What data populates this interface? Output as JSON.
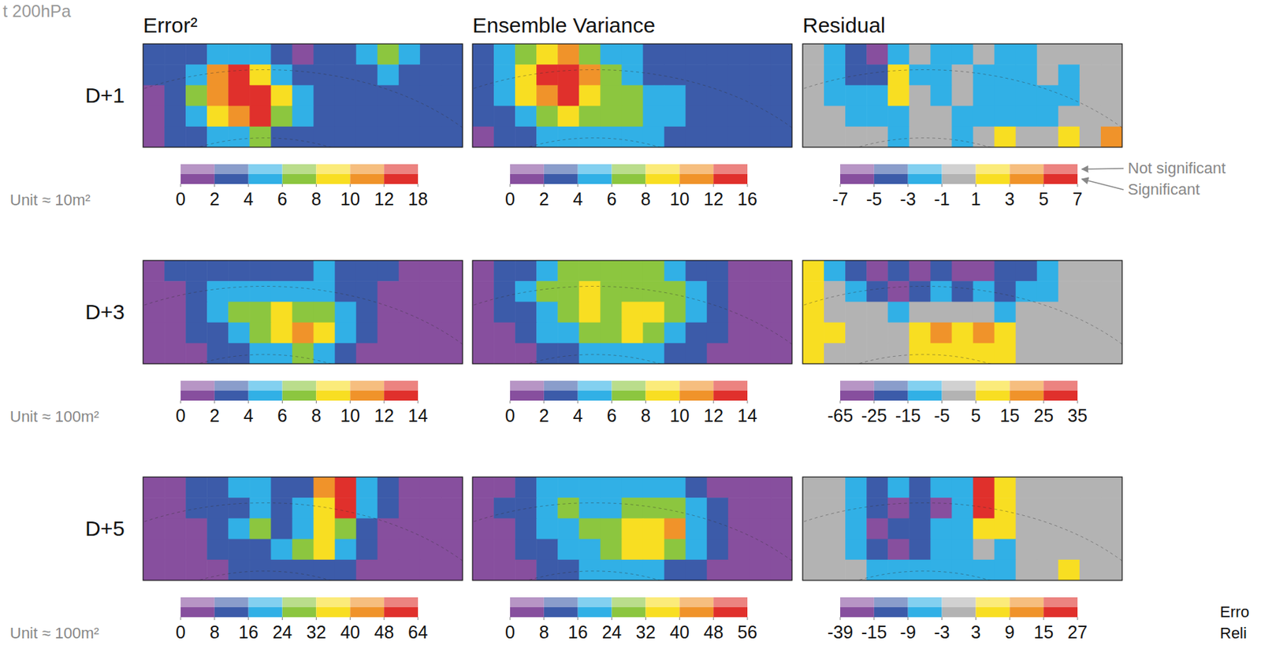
{
  "header": {
    "title": "t 200hPa"
  },
  "column_titles": [
    "Error²",
    "Ensemble Variance",
    "Residual"
  ],
  "row_labels": [
    "D+1",
    "D+3",
    "D+5"
  ],
  "unit_labels": [
    "Unit ≈ 10m²",
    "Unit ≈ 100m²",
    "Unit ≈ 100m²"
  ],
  "significance_labels": [
    "Not significant",
    "Significant"
  ],
  "corner_texts": [
    "Erro",
    "Reli"
  ],
  "chart_data": [
    {
      "type": "heatmap",
      "z": [
        [
          3,
          2,
          3,
          5,
          4,
          5,
          3,
          1,
          3,
          3,
          5,
          7,
          5,
          3,
          3
        ],
        [
          3,
          3,
          5,
          10,
          13,
          9,
          5,
          3,
          3,
          3,
          3,
          5,
          3,
          3,
          3
        ],
        [
          1,
          3,
          6,
          11,
          14,
          12,
          8,
          4,
          3,
          3,
          3,
          3,
          3,
          3,
          3
        ],
        [
          1,
          2,
          5,
          9,
          11,
          13,
          7,
          4,
          3,
          3,
          3,
          3,
          3,
          3,
          3
        ],
        [
          1,
          3,
          3,
          5,
          5,
          6,
          3,
          3,
          3,
          3,
          3,
          3,
          3,
          3,
          3
        ]
      ],
      "colorbar": {
        "ticks": [
          0,
          2,
          4,
          6,
          8,
          10,
          12,
          18
        ],
        "colors": [
          "#874f9e",
          "#3c5ba9",
          "#31b0e6",
          "#8cc63f",
          "#f8de22",
          "#f0932a",
          "#e0302c"
        ]
      }
    },
    {
      "type": "heatmap",
      "z": [
        [
          3,
          4,
          6,
          9,
          10,
          7,
          5,
          4,
          3,
          3,
          3,
          3,
          3,
          3,
          3
        ],
        [
          3,
          5,
          9,
          13,
          14,
          11,
          7,
          5,
          3,
          3,
          3,
          3,
          3,
          3,
          3
        ],
        [
          3,
          5,
          8,
          11,
          12,
          9,
          7,
          7,
          5,
          4,
          3,
          3,
          3,
          3,
          3
        ],
        [
          2,
          3,
          5,
          7,
          8,
          7,
          6,
          7,
          5,
          4,
          3,
          3,
          3,
          3,
          3
        ],
        [
          1,
          3,
          3,
          4,
          5,
          5,
          4,
          4,
          4,
          3,
          3,
          3,
          3,
          3,
          3
        ]
      ],
      "colorbar": {
        "ticks": [
          0,
          2,
          4,
          6,
          8,
          10,
          12,
          16
        ],
        "colors": [
          "#874f9e",
          "#3c5ba9",
          "#31b0e6",
          "#8cc63f",
          "#f8de22",
          "#f0932a",
          "#e0302c"
        ]
      }
    },
    {
      "type": "heatmap",
      "z": [
        [
          0,
          -2,
          -5,
          -6,
          -3,
          -1,
          -2,
          -2,
          0,
          -2,
          -2,
          -1,
          0,
          0,
          0
        ],
        [
          0,
          -3,
          -5,
          -4,
          2,
          -2,
          -2,
          -1,
          -2,
          -2,
          -2,
          -1,
          -2,
          0,
          0
        ],
        [
          0,
          -2,
          -3,
          -3,
          2,
          0,
          -2,
          -1,
          -2,
          -3,
          -2,
          -2,
          -2,
          0,
          0
        ],
        [
          0,
          -1,
          -2,
          -3,
          -2,
          0,
          -1,
          -2,
          -2,
          -3,
          -2,
          -2,
          -1,
          0,
          0
        ],
        [
          0,
          0,
          -1,
          -1,
          -2,
          -1,
          -1,
          -2,
          0,
          2,
          0,
          0,
          2,
          0,
          3
        ]
      ],
      "colorbar": {
        "ticks": [
          -7,
          -5,
          -3,
          -1,
          1,
          3,
          5,
          7
        ],
        "colors": [
          "#874f9e",
          "#3c5ba9",
          "#31b0e6",
          "#b3b3b3",
          "#f8de22",
          "#f0932a",
          "#e0302c"
        ]
      }
    },
    {
      "type": "heatmap",
      "z": [
        [
          1,
          2,
          3,
          3,
          3,
          3,
          3,
          3,
          4,
          3,
          2,
          2,
          1,
          1,
          1
        ],
        [
          1,
          1,
          2,
          4,
          4,
          5,
          5,
          4,
          4,
          3,
          2,
          1,
          1,
          1,
          1
        ],
        [
          1,
          1,
          2,
          4,
          6,
          7,
          8,
          7,
          6,
          4,
          2,
          1,
          1,
          1,
          1
        ],
        [
          1,
          1,
          2,
          3,
          5,
          7,
          9,
          10,
          8,
          4,
          2,
          1,
          1,
          1,
          1
        ],
        [
          1,
          1,
          1,
          2,
          3,
          5,
          5,
          6,
          5,
          3,
          1,
          1,
          1,
          1,
          1
        ]
      ],
      "colorbar": {
        "ticks": [
          0,
          2,
          4,
          6,
          8,
          10,
          12,
          14
        ],
        "colors": [
          "#874f9e",
          "#3c5ba9",
          "#31b0e6",
          "#8cc63f",
          "#f8de22",
          "#f0932a",
          "#e0302c"
        ]
      }
    },
    {
      "type": "heatmap",
      "z": [
        [
          1,
          2,
          3,
          5,
          6,
          7,
          7,
          6,
          6,
          5,
          3,
          2,
          1,
          1,
          1
        ],
        [
          1,
          2,
          4,
          6,
          7,
          8,
          7,
          7,
          7,
          6,
          4,
          2,
          1,
          1,
          1
        ],
        [
          1,
          2,
          3,
          5,
          7,
          8,
          7,
          8,
          9,
          6,
          4,
          2,
          1,
          1,
          1
        ],
        [
          1,
          1,
          2,
          4,
          5,
          6,
          7,
          9,
          7,
          5,
          3,
          2,
          1,
          1,
          1
        ],
        [
          1,
          1,
          1,
          2,
          3,
          4,
          5,
          5,
          4,
          3,
          2,
          1,
          1,
          1,
          1
        ]
      ],
      "colorbar": {
        "ticks": [
          0,
          2,
          4,
          6,
          8,
          10,
          12,
          14
        ],
        "colors": [
          "#874f9e",
          "#3c5ba9",
          "#31b0e6",
          "#8cc63f",
          "#f8de22",
          "#f0932a",
          "#e0302c"
        ]
      }
    },
    {
      "type": "heatmap",
      "z": [
        [
          10,
          -10,
          -20,
          -30,
          -20,
          -30,
          -20,
          -30,
          -30,
          -20,
          -20,
          -10,
          0,
          0,
          0
        ],
        [
          8,
          0,
          -10,
          -20,
          -30,
          -20,
          -15,
          -20,
          -10,
          -20,
          -10,
          -10,
          0,
          0,
          0
        ],
        [
          10,
          3,
          0,
          -5,
          -10,
          -5,
          0,
          2,
          0,
          -10,
          -5,
          0,
          0,
          0,
          0
        ],
        [
          10,
          5,
          0,
          0,
          3,
          10,
          15,
          10,
          20,
          10,
          0,
          0,
          0,
          0,
          0
        ],
        [
          5,
          3,
          0,
          0,
          0,
          5,
          10,
          5,
          10,
          5,
          0,
          0,
          -5,
          0,
          0
        ]
      ],
      "colorbar": {
        "ticks": [
          -65,
          -25,
          -15,
          -5,
          5,
          15,
          25,
          35
        ],
        "colors": [
          "#874f9e",
          "#3c5ba9",
          "#31b0e6",
          "#b3b3b3",
          "#f8de22",
          "#f0932a",
          "#e0302c"
        ]
      }
    },
    {
      "type": "heatmap",
      "z": [
        [
          2,
          4,
          8,
          14,
          22,
          20,
          12,
          14,
          40,
          56,
          20,
          8,
          2,
          2,
          2
        ],
        [
          2,
          4,
          8,
          12,
          14,
          18,
          14,
          20,
          38,
          50,
          20,
          8,
          2,
          2,
          2
        ],
        [
          2,
          2,
          6,
          10,
          18,
          26,
          14,
          20,
          34,
          28,
          12,
          4,
          2,
          2,
          2
        ],
        [
          2,
          2,
          4,
          8,
          12,
          14,
          16,
          24,
          32,
          20,
          8,
          2,
          2,
          2,
          2
        ],
        [
          2,
          2,
          2,
          6,
          8,
          10,
          12,
          14,
          12,
          8,
          4,
          2,
          2,
          2,
          2
        ]
      ],
      "colorbar": {
        "ticks": [
          0,
          8,
          16,
          24,
          32,
          40,
          48,
          64
        ],
        "colors": [
          "#874f9e",
          "#3c5ba9",
          "#31b0e6",
          "#8cc63f",
          "#f8de22",
          "#f0932a",
          "#e0302c"
        ]
      }
    },
    {
      "type": "heatmap",
      "z": [
        [
          2,
          6,
          12,
          18,
          22,
          20,
          18,
          20,
          22,
          18,
          12,
          6,
          2,
          2,
          2
        ],
        [
          2,
          8,
          14,
          20,
          24,
          22,
          20,
          24,
          28,
          24,
          16,
          8,
          2,
          2,
          2
        ],
        [
          2,
          6,
          12,
          18,
          22,
          24,
          28,
          34,
          38,
          40,
          22,
          10,
          2,
          2,
          2
        ],
        [
          2,
          4,
          8,
          14,
          18,
          22,
          28,
          34,
          34,
          26,
          18,
          8,
          2,
          2,
          2
        ],
        [
          2,
          2,
          4,
          8,
          12,
          16,
          18,
          20,
          18,
          12,
          8,
          4,
          2,
          2,
          2
        ]
      ],
      "colorbar": {
        "ticks": [
          0,
          8,
          16,
          24,
          32,
          40,
          48,
          56
        ],
        "colors": [
          "#874f9e",
          "#3c5ba9",
          "#31b0e6",
          "#8cc63f",
          "#f8de22",
          "#f0932a",
          "#e0302c"
        ]
      }
    },
    {
      "type": "heatmap",
      "z": [
        [
          0,
          0,
          -4,
          -10,
          -6,
          -12,
          -4,
          -4,
          15,
          8,
          0,
          0,
          0,
          0,
          0
        ],
        [
          0,
          0,
          -5,
          -12,
          -20,
          -10,
          -18,
          -6,
          18,
          5,
          0,
          0,
          0,
          0,
          0
        ],
        [
          0,
          -2,
          -8,
          -16,
          -12,
          -10,
          -8,
          -6,
          5,
          3,
          0,
          0,
          0,
          0,
          0
        ],
        [
          0,
          0,
          -6,
          -10,
          -16,
          -10,
          -6,
          -5,
          0,
          -4,
          -2,
          0,
          0,
          0,
          0
        ],
        [
          0,
          0,
          -2,
          -4,
          -6,
          -8,
          -4,
          -4,
          -6,
          -5,
          0,
          0,
          4,
          0,
          0
        ]
      ],
      "colorbar": {
        "ticks": [
          -39,
          -15,
          -9,
          -3,
          3,
          9,
          15,
          27
        ],
        "colors": [
          "#874f9e",
          "#3c5ba9",
          "#31b0e6",
          "#b3b3b3",
          "#f8de22",
          "#f0932a",
          "#e0302c"
        ]
      }
    }
  ]
}
